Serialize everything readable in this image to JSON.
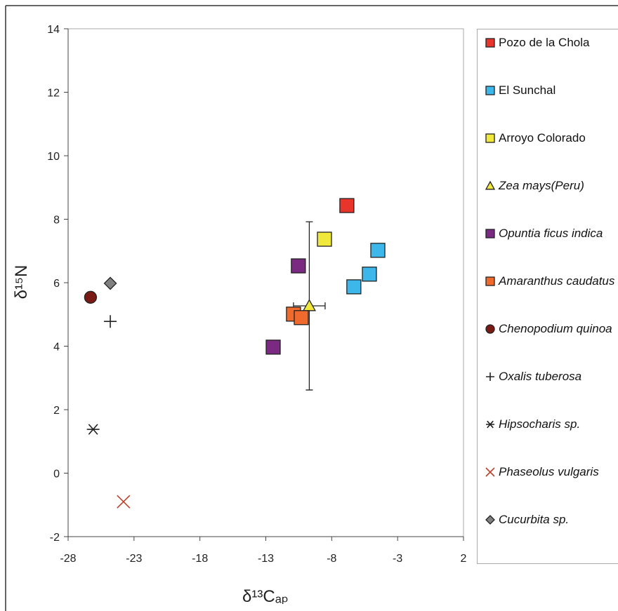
{
  "chart_data": {
    "type": "scatter",
    "x_label": "δ¹³Cₐₚ",
    "y_label": "δ¹⁵N",
    "xlim": [
      -28,
      2
    ],
    "xticks": [
      -28,
      -23,
      -18,
      -13,
      -8,
      -3,
      2
    ],
    "ylim": [
      -2,
      14
    ],
    "yticks": [
      -2,
      0,
      2,
      4,
      6,
      8,
      10,
      12,
      14
    ],
    "series": [
      {
        "name": "Pozo de la Chola",
        "marker": "square",
        "color": "#e8352b",
        "italic": false,
        "x": [
          -6.85
        ],
        "y": [
          8.43
        ]
      },
      {
        "name": "El Sunchal",
        "marker": "square",
        "color": "#3db6ea",
        "italic": false,
        "x": [
          -4.5,
          -5.14,
          -6.32
        ],
        "y": [
          7.02,
          6.27,
          5.87
        ]
      },
      {
        "name": "Arroyo Colorado",
        "marker": "square",
        "color": "#f1e83c",
        "italic": false,
        "x": [
          -8.55
        ],
        "y": [
          7.37
        ]
      },
      {
        "name": "Zea mays(Peru)",
        "marker": "triangle",
        "color": "#f1e83c",
        "italic": true,
        "x": [
          -9.7
        ],
        "y": [
          5.27
        ],
        "x_error": [
          1.2
        ],
        "y_error": [
          2.65
        ]
      },
      {
        "name": "Opuntia ficus indica",
        "marker": "square",
        "color": "#7a2a80",
        "italic": true,
        "x": [
          -10.53,
          -12.44
        ],
        "y": [
          6.53,
          3.97
        ]
      },
      {
        "name": "Amaranthus caudatus",
        "marker": "square",
        "color": "#ef6a2c",
        "italic": true,
        "x": [
          -10.9,
          -10.31
        ],
        "y": [
          5.01,
          4.9
        ]
      },
      {
        "name": "Chenopodium quinoa",
        "marker": "circle",
        "color": "#7a1a14",
        "italic": true,
        "x": [
          -26.3
        ],
        "y": [
          5.54
        ]
      },
      {
        "name": "Oxalis tuberosa",
        "marker": "plus",
        "color": "#222222",
        "italic": true,
        "x": [
          -24.8
        ],
        "y": [
          4.78
        ]
      },
      {
        "name": "Hipsocharis sp.",
        "marker": "asterisk",
        "color": "#222222",
        "italic": true,
        "x": [
          -26.1
        ],
        "y": [
          1.38
        ]
      },
      {
        "name": "Phaseolus vulgaris",
        "marker": "x",
        "color": "#b9432c",
        "italic": true,
        "x": [
          -23.8
        ],
        "y": [
          -0.9
        ]
      },
      {
        "name": "Cucurbita sp.",
        "marker": "diamond",
        "color": "#808080",
        "italic": true,
        "x": [
          -24.8
        ],
        "y": [
          5.98
        ]
      }
    ]
  }
}
